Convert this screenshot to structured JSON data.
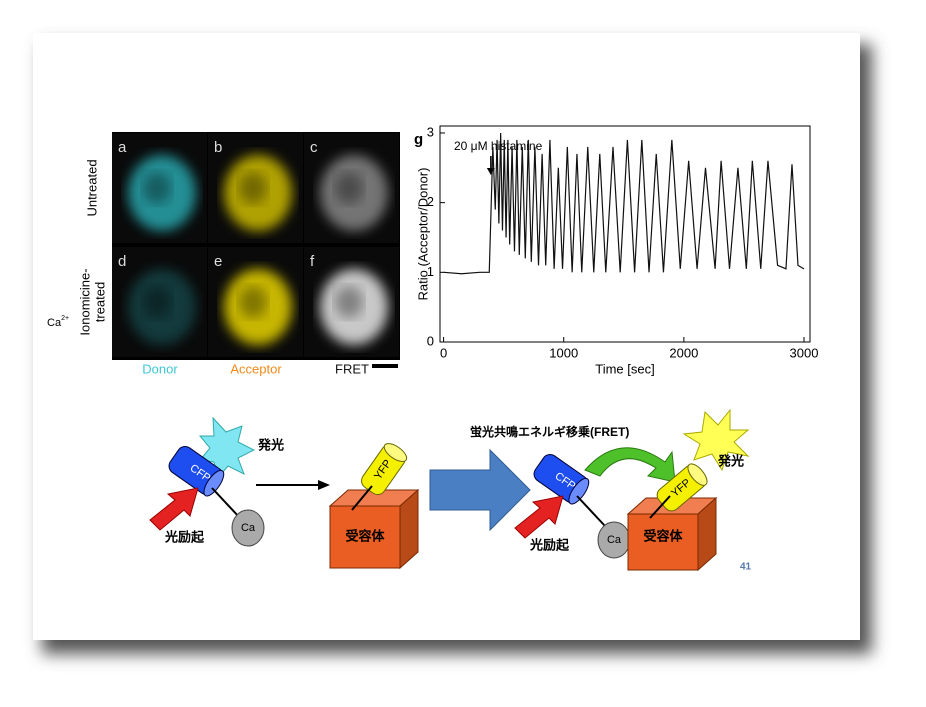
{
  "side_label": {
    "text": "Ca",
    "superscript": "2+"
  },
  "figure": {
    "panels": [
      "a",
      "b",
      "c",
      "d",
      "e",
      "f"
    ],
    "row_labels": [
      [
        "Untreated"
      ],
      [
        "Ionomicine-",
        "treated"
      ]
    ],
    "column_labels": [
      "Donor",
      "Acceptor",
      "FRET"
    ]
  },
  "chart_data": {
    "type": "line",
    "panel": "g",
    "annotation": "20 μM histamine",
    "xlabel": "Time [sec]",
    "ylabel": "Ratio (Acceptor/Donor)",
    "x": [
      0,
      150,
      300,
      380,
      410,
      430,
      445,
      460,
      475,
      490,
      505,
      520,
      535,
      550,
      570,
      590,
      610,
      630,
      655,
      680,
      705,
      730,
      760,
      790,
      820,
      850,
      885,
      920,
      955,
      990,
      1030,
      1070,
      1110,
      1150,
      1200,
      1250,
      1300,
      1350,
      1410,
      1470,
      1530,
      1590,
      1650,
      1710,
      1770,
      1830,
      1900,
      1970,
      2040,
      2110,
      2180,
      2260,
      2310,
      2380,
      2450,
      2520,
      2570,
      2640,
      2700,
      2780,
      2850,
      2900,
      2950,
      3000
    ],
    "series": [
      {
        "color": "#111111",
        "values": [
          1.0,
          0.98,
          1.0,
          1.0,
          2.8,
          1.9,
          2.9,
          1.7,
          3.0,
          1.6,
          2.9,
          1.5,
          2.9,
          1.4,
          2.8,
          1.3,
          2.9,
          1.25,
          2.8,
          1.2,
          2.9,
          1.15,
          2.8,
          1.1,
          2.7,
          1.1,
          2.9,
          1.05,
          2.5,
          1.05,
          2.8,
          1.0,
          2.7,
          1.0,
          2.8,
          1.0,
          2.7,
          1.0,
          2.8,
          1.0,
          2.9,
          1.0,
          2.9,
          1.0,
          2.7,
          1.0,
          2.9,
          1.05,
          2.6,
          1.05,
          2.5,
          1.05,
          2.6,
          1.05,
          2.5,
          1.05,
          2.6,
          1.05,
          2.6,
          1.1,
          1.05,
          2.55,
          1.1,
          1.05
        ]
      }
    ],
    "xlim": [
      -30,
      3050
    ],
    "ylim": [
      0,
      3.1
    ],
    "xticks": [
      0,
      1000,
      2000,
      3000
    ],
    "yticks": [
      0,
      1,
      2,
      3
    ]
  },
  "diagram": {
    "left": {
      "donor": "CFP",
      "emission": "発光",
      "excitation": "光励起",
      "ion": "Ca",
      "acceptor": "YFP",
      "receptor": "受容体"
    },
    "right": {
      "title": "蛍光共鳴エネルギ移乗(FRET)",
      "donor": "CFP",
      "excitation": "光励起",
      "ion": "Ca",
      "acceptor": "YFP",
      "emission": "発光",
      "receptor": "受容体"
    }
  },
  "page_number": "41"
}
